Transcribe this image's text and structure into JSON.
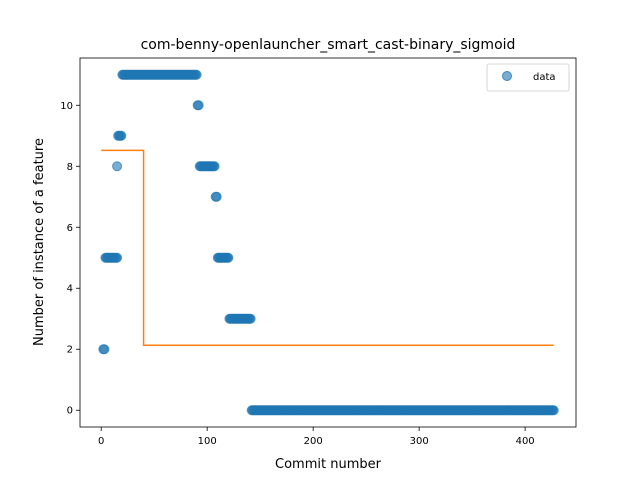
{
  "chart_data": {
    "type": "scatter",
    "title": "com-benny-openlauncher_smart_cast-binary_sigmoid",
    "xlabel": "Commit number",
    "ylabel": "Number of instance of a feature",
    "xlim": [
      -20,
      448
    ],
    "ylim": [
      -0.55,
      11.55
    ],
    "xticks": [
      0,
      100,
      200,
      300,
      400
    ],
    "yticks": [
      0,
      2,
      4,
      6,
      8,
      10
    ],
    "grid": false,
    "legend": {
      "position": "top-right",
      "entries": [
        "data"
      ]
    },
    "colors": {
      "scatter": "#1f77b4",
      "fit": "#ff7f0e"
    },
    "scatter_segments": [
      {
        "x_start": 2,
        "x_end": 2,
        "y": 2
      },
      {
        "x_start": 3,
        "x_end": 3,
        "y": 2
      },
      {
        "x_start": 4,
        "x_end": 15,
        "y": 5
      },
      {
        "x_start": 15,
        "x_end": 15,
        "y": 8
      },
      {
        "x_start": 16,
        "x_end": 19,
        "y": 9
      },
      {
        "x_start": 20,
        "x_end": 90,
        "y": 11
      },
      {
        "x_start": 91,
        "x_end": 92,
        "y": 10
      },
      {
        "x_start": 93,
        "x_end": 107,
        "y": 8
      },
      {
        "x_start": 108,
        "x_end": 109,
        "y": 7
      },
      {
        "x_start": 110,
        "x_end": 120,
        "y": 5
      },
      {
        "x_start": 121,
        "x_end": 141,
        "y": 3
      },
      {
        "x_start": 142,
        "x_end": 427,
        "y": 0
      }
    ],
    "fit_line": {
      "x": [
        0,
        40,
        40,
        427
      ],
      "y": [
        8.52,
        8.52,
        2.13,
        2.13
      ]
    }
  }
}
